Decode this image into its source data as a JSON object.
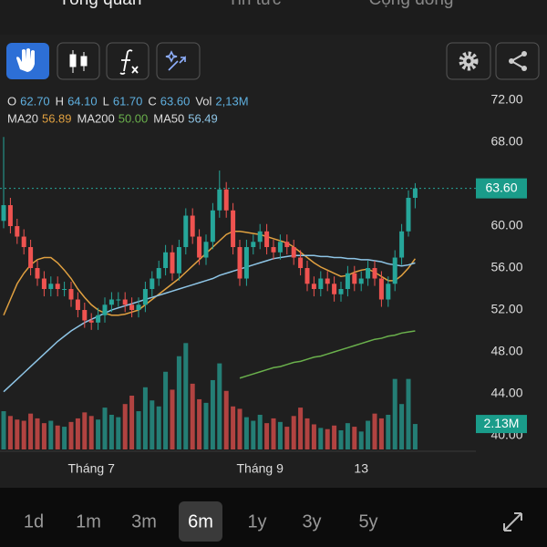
{
  "tabs": [
    "Tổng quan",
    "Tin tức",
    "Cộng đồng"
  ],
  "header": {
    "ohlc": [
      {
        "key": "O",
        "value": "62.70"
      },
      {
        "key": "H",
        "value": "64.10"
      },
      {
        "key": "L",
        "value": "61.70"
      },
      {
        "key": "C",
        "value": "63.60"
      },
      {
        "key": "Vol",
        "value": "2,13M"
      }
    ]
  },
  "chart_data": {
    "type": "candlestick",
    "categories": [
      null,
      null,
      null,
      null,
      null,
      null,
      null,
      null,
      null,
      null,
      null,
      null,
      null,
      "Tháng 7",
      null,
      null,
      null,
      null,
      null,
      null,
      null,
      null,
      null,
      null,
      null,
      null,
      null,
      null,
      null,
      null,
      null,
      null,
      null,
      null,
      null,
      null,
      null,
      null,
      "Tháng 9",
      null,
      null,
      null,
      null,
      null,
      null,
      null,
      null,
      null,
      null,
      null,
      null,
      null,
      null,
      "13",
      null,
      null,
      null,
      null,
      null,
      null,
      null,
      null
    ],
    "open": [
      60.5,
      62,
      60,
      59,
      58,
      56,
      55,
      54,
      54.5,
      54,
      54,
      53,
      52,
      51,
      50.8,
      51.5,
      52.5,
      53,
      53,
      52.5,
      52,
      52.5,
      54,
      55,
      56,
      57.5,
      55.5,
      58,
      61,
      59,
      57,
      58.5,
      61.5,
      63.5,
      61.5,
      58,
      55,
      58,
      58.5,
      59.5,
      58,
      57.5,
      58.5,
      58,
      57,
      56,
      54.5,
      54,
      55,
      54.5,
      53.5,
      54,
      55.5,
      54.5,
      55,
      56,
      55,
      53,
      54.5,
      57,
      59.5,
      62.7
    ],
    "high": [
      68.5,
      62.7,
      60.7,
      59.7,
      58.7,
      56.7,
      55.7,
      55.2,
      55.2,
      54.7,
      54.7,
      53.7,
      52.7,
      51.7,
      52.2,
      53.2,
      53.7,
      53.7,
      53.7,
      53.2,
      53.2,
      54.7,
      55.7,
      56.7,
      58.2,
      58.2,
      58.7,
      61.7,
      61.7,
      59.7,
      59.2,
      62.2,
      65.3,
      64.2,
      62.2,
      58.7,
      58.7,
      59.2,
      60.2,
      60.2,
      58.7,
      59.2,
      59.2,
      58.7,
      57.7,
      56.7,
      55.2,
      55.7,
      55.7,
      55.2,
      54.7,
      56.2,
      56.2,
      55.7,
      56.7,
      56.7,
      55.7,
      55.2,
      57.7,
      60.2,
      63.4,
      64.1
    ],
    "low": [
      59.8,
      59.3,
      58.3,
      57.3,
      55.3,
      54.3,
      53.3,
      53.3,
      53.3,
      53.3,
      52.3,
      51.3,
      50.3,
      50.1,
      50.1,
      50.8,
      51.8,
      52.3,
      51.8,
      51.3,
      51.3,
      51.8,
      53.3,
      54.3,
      55.3,
      54.8,
      54.8,
      57.3,
      58.3,
      56.3,
      56.3,
      57.8,
      60.8,
      60.8,
      57.3,
      54.3,
      54.3,
      57.3,
      57.8,
      57.3,
      56.8,
      56.8,
      57.3,
      56.3,
      55.3,
      53.8,
      53.3,
      53.3,
      53.8,
      52.8,
      52.8,
      53.3,
      53.8,
      53.8,
      54.3,
      54.3,
      52.3,
      52.3,
      53.8,
      56.3,
      59.0,
      61.7
    ],
    "close": [
      62,
      60,
      59,
      58,
      56,
      55,
      54,
      54.5,
      54,
      54,
      53,
      52,
      51,
      50.8,
      51.5,
      52.5,
      53,
      53,
      52.5,
      52,
      52.5,
      54,
      55,
      56,
      57.5,
      55.5,
      58,
      61,
      59,
      57,
      58.5,
      61.5,
      63.5,
      61.5,
      58,
      55,
      58,
      58.5,
      59.5,
      58,
      57.5,
      58.5,
      58,
      57,
      56,
      54.5,
      54,
      55,
      54.5,
      53.5,
      54,
      55.5,
      54.5,
      55,
      56,
      55,
      53,
      54.5,
      57,
      59.5,
      62.7,
      63.6
    ],
    "volume": [
      3.2,
      2.8,
      2.5,
      2.4,
      3.0,
      2.6,
      2.2,
      2.4,
      2.0,
      1.9,
      2.3,
      2.6,
      3.1,
      2.8,
      2.5,
      3.5,
      2.9,
      2.7,
      3.8,
      4.5,
      3.2,
      5.2,
      4.1,
      3.6,
      6.5,
      5.0,
      7.8,
      8.9,
      5.5,
      4.2,
      3.9,
      5.8,
      7.2,
      4.9,
      3.6,
      3.4,
      2.7,
      2.4,
      2.9,
      2.2,
      2.6,
      2.3,
      1.9,
      2.8,
      3.5,
      2.6,
      2.1,
      1.8,
      1.7,
      2.0,
      1.6,
      2.2,
      1.9,
      1.5,
      2.4,
      3.0,
      2.6,
      2.9,
      5.9,
      3.8,
      5.9,
      2.13
    ],
    "volume_label": "2.13M",
    "price_label": "63.60",
    "up_color": "#26a69a",
    "down_color": "#ef5350",
    "series": [
      {
        "name": "MA20",
        "color": "#e0a040",
        "value_label": "56.89",
        "values": [
          51.5,
          53,
          54.5,
          55.5,
          56.3,
          56.8,
          57,
          57,
          56.5,
          55.8,
          55,
          54,
          53.2,
          52.5,
          52,
          51.7,
          51.5,
          51.5,
          51.6,
          51.8,
          52,
          52.5,
          53,
          53.5,
          54,
          54.5,
          55,
          55.6,
          56.2,
          56.8,
          57.4,
          58,
          58.6,
          59.2,
          59.5,
          59.5,
          59.4,
          59.3,
          59.2,
          59,
          58.8,
          58.6,
          58.4,
          58,
          57.5,
          57,
          56.5,
          56.1,
          55.8,
          55.5,
          55.2,
          55.3,
          55.6,
          55.8,
          55.9,
          55.6,
          55.2,
          54.8,
          54.8,
          55.3,
          56,
          56.89
        ]
      },
      {
        "name": "MA200",
        "color": "#6ab04c",
        "value_label": "50.00",
        "values": [
          null,
          null,
          null,
          null,
          null,
          null,
          null,
          null,
          null,
          null,
          null,
          null,
          null,
          null,
          null,
          null,
          null,
          null,
          null,
          null,
          null,
          null,
          null,
          null,
          null,
          null,
          null,
          null,
          null,
          null,
          null,
          null,
          null,
          null,
          null,
          45.5,
          45.7,
          45.9,
          46.1,
          46.3,
          46.5,
          46.6,
          46.8,
          47,
          47.1,
          47.3,
          47.5,
          47.6,
          47.8,
          48,
          48.2,
          48.4,
          48.6,
          48.8,
          49,
          49.2,
          49.3,
          49.5,
          49.6,
          49.8,
          49.9,
          50.0
        ]
      },
      {
        "name": "MA50",
        "color": "#8ec5e6",
        "value_label": "56.49",
        "values": [
          44.2,
          44.8,
          45.4,
          46,
          46.6,
          47.2,
          47.8,
          48.4,
          49,
          49.5,
          50,
          50.4,
          50.8,
          51.1,
          51.4,
          51.7,
          52,
          52.2,
          52.4,
          52.6,
          52.8,
          53,
          53.2,
          53.4,
          53.6,
          53.8,
          54,
          54.2,
          54.4,
          54.6,
          54.8,
          55,
          55.3,
          55.5,
          55.7,
          55.9,
          56.1,
          56.3,
          56.5,
          56.7,
          56.9,
          57,
          57.1,
          57.2,
          57.2,
          57.2,
          57.2,
          57.1,
          57.1,
          57,
          57,
          56.9,
          56.9,
          56.8,
          56.8,
          56.7,
          56.6,
          56.4,
          56.3,
          56.2,
          56.3,
          56.49
        ]
      }
    ],
    "ylim": [
      31.39,
      76.7
    ],
    "yticks": [
      {
        "value": 72,
        "label": "72.00"
      },
      {
        "value": 68,
        "label": "68.00"
      },
      {
        "value": 60,
        "label": "60.00"
      },
      {
        "value": 56,
        "label": "56.00"
      },
      {
        "value": 52,
        "label": "52.00"
      },
      {
        "value": 48,
        "label": "48.00"
      },
      {
        "value": 44,
        "label": "44.00"
      },
      {
        "value": 40,
        "label": "40.00"
      }
    ],
    "volume_lim": [
      0,
      9
    ],
    "grid": false
  },
  "timeframes": [
    "1d",
    "1m",
    "3m",
    "6m",
    "1y",
    "3y",
    "5y"
  ],
  "selected_timeframe": 3
}
